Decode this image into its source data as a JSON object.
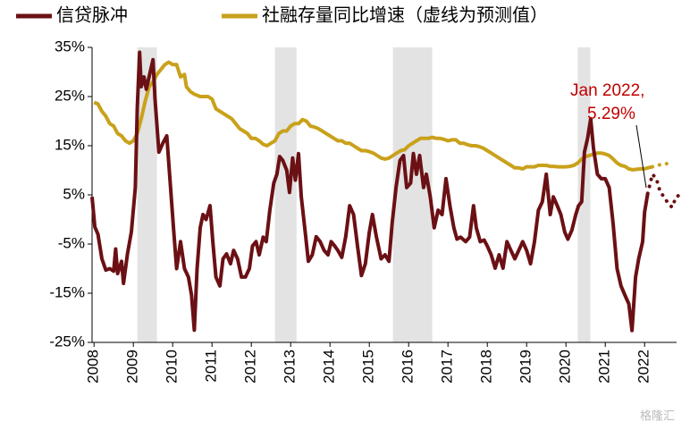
{
  "chart_data": {
    "type": "line",
    "xlim": [
      2007.95,
      2022.95
    ],
    "xticks": [
      2008,
      2009,
      2010,
      2011,
      2012,
      2013,
      2014,
      2015,
      2016,
      2017,
      2018,
      2019,
      2020,
      2021,
      2022
    ],
    "ylim": [
      -25,
      35
    ],
    "yticks": [
      {
        "value": -25,
        "label": "-25%"
      },
      {
        "value": -15,
        "label": "-15%"
      },
      {
        "value": -5,
        "label": "-5%"
      },
      {
        "value": 5,
        "label": "5%"
      },
      {
        "value": 15,
        "label": "15%"
      },
      {
        "value": 25,
        "label": "25%"
      },
      {
        "value": 35,
        "label": "35%"
      }
    ],
    "shaded_periods": [
      [
        2009.1,
        2009.6
      ],
      [
        2012.6,
        2013.15
      ],
      [
        2015.6,
        2016.6
      ],
      [
        2020.3,
        2020.62
      ]
    ],
    "annotation": [
      "Jan 2022,",
      "5.29%"
    ],
    "watermark": "格隆汇",
    "series": [
      {
        "name": "信贷脉冲",
        "color": "#6b1014",
        "dashed_from": 2022.08,
        "x": [
          2007.95,
          2008.02,
          2008.1,
          2008.2,
          2008.3,
          2008.4,
          2008.5,
          2008.55,
          2008.6,
          2008.7,
          2008.75,
          2008.85,
          2008.95,
          2009.05,
          2009.1,
          2009.16,
          2009.2,
          2009.27,
          2009.33,
          2009.4,
          2009.5,
          2009.55,
          2009.65,
          2009.75,
          2009.85,
          2009.93,
          2010.02,
          2010.1,
          2010.2,
          2010.3,
          2010.4,
          2010.48,
          2010.55,
          2010.62,
          2010.7,
          2010.77,
          2010.85,
          2010.95,
          2011.02,
          2011.1,
          2011.2,
          2011.28,
          2011.37,
          2011.47,
          2011.55,
          2011.65,
          2011.75,
          2011.85,
          2011.95,
          2012.03,
          2012.12,
          2012.2,
          2012.3,
          2012.38,
          2012.47,
          2012.57,
          2012.65,
          2012.72,
          2012.8,
          2012.9,
          2012.97,
          2013.05,
          2013.12,
          2013.2,
          2013.27,
          2013.37,
          2013.45,
          2013.55,
          2013.65,
          2013.75,
          2013.85,
          2013.95,
          2014.03,
          2014.12,
          2014.2,
          2014.3,
          2014.4,
          2014.5,
          2014.6,
          2014.7,
          2014.8,
          2014.9,
          2015.0,
          2015.08,
          2015.18,
          2015.3,
          2015.4,
          2015.5,
          2015.58,
          2015.68,
          2015.78,
          2015.87,
          2015.95,
          2016.05,
          2016.12,
          2016.2,
          2016.28,
          2016.38,
          2016.45,
          2016.55,
          2016.65,
          2016.75,
          2016.85,
          2016.95,
          2017.05,
          2017.15,
          2017.23,
          2017.32,
          2017.45,
          2017.55,
          2017.65,
          2017.72,
          2017.82,
          2017.92,
          2018.0,
          2018.1,
          2018.2,
          2018.3,
          2018.4,
          2018.5,
          2018.6,
          2018.7,
          2018.8,
          2018.9,
          2019.0,
          2019.1,
          2019.2,
          2019.3,
          2019.4,
          2019.5,
          2019.6,
          2019.68,
          2019.78,
          2019.87,
          2019.97,
          2020.05,
          2020.15,
          2020.25,
          2020.32,
          2020.4,
          2020.47,
          2020.55,
          2020.63,
          2020.7,
          2020.8,
          2020.9,
          2021.0,
          2021.1,
          2021.2,
          2021.3,
          2021.4,
          2021.5,
          2021.6,
          2021.68,
          2021.77,
          2021.85,
          2021.95,
          2022.0,
          2022.08,
          2022.2,
          2022.3,
          2022.4,
          2022.5,
          2022.6,
          2022.7,
          2022.8,
          2022.9
        ],
        "values": [
          4.6,
          -1.5,
          -3,
          -8,
          -10.3,
          -10,
          -10.5,
          -6,
          -11,
          -8.5,
          -13,
          -7,
          -2.5,
          6.5,
          22.8,
          34,
          27,
          29,
          26.5,
          29,
          32.5,
          24.6,
          13.7,
          15.5,
          17,
          8.3,
          -1.7,
          -10,
          -4.5,
          -10,
          -11.7,
          -15.4,
          -22.5,
          -10,
          -1.7,
          1,
          0,
          2.8,
          -4.5,
          -11.7,
          -13.5,
          -8,
          -7,
          -9,
          -6.3,
          -8,
          -11.7,
          -11.7,
          -10,
          -5.4,
          -4.5,
          -7.2,
          -3.6,
          -4.5,
          1.9,
          7.4,
          9.2,
          12.8,
          12,
          10,
          5.5,
          12.5,
          8,
          13.4,
          4.6,
          -2.6,
          -8.5,
          -7.2,
          -3.5,
          -4.5,
          -6.3,
          -7.2,
          -4.5,
          -5.4,
          -6.3,
          -7.7,
          -3.5,
          2.8,
          1,
          -5.4,
          -11.4,
          -9,
          -2.6,
          1,
          -3.5,
          -8,
          -7.2,
          -8.5,
          -0.9,
          6.5,
          12,
          13,
          6.5,
          7.4,
          13.4,
          9.2,
          13,
          6.5,
          9.2,
          4.6,
          -1.7,
          1.9,
          1,
          8.3,
          2.8,
          -1.7,
          -4,
          -3.6,
          -4.5,
          -3.6,
          2.8,
          -1.7,
          -4.5,
          -4.2,
          -5.4,
          -7.2,
          -9.9,
          -7.2,
          -9.9,
          -4.5,
          -6.3,
          -8,
          -6.3,
          -4.5,
          -6.3,
          -9,
          -4.5,
          1.9,
          3.6,
          9.2,
          1,
          4.6,
          2.8,
          1,
          -2.6,
          -4,
          -2.2,
          1,
          2.8,
          3.6,
          13.7,
          16.5,
          20.5,
          14.5,
          9.2,
          8.3,
          8.3,
          6.5,
          -0.9,
          -10,
          -13.5,
          -15.4,
          -17.2,
          -22.6,
          -11.7,
          -8,
          -4.5,
          1.5,
          5.29,
          9.2,
          8.3,
          5.5,
          4.6,
          3.2,
          2.5,
          4.6,
          5
        ]
      },
      {
        "name": "社融存量同比增速（虚线为预测值）",
        "color": "#c9a11b",
        "dashed_from": 2022.2,
        "x": [
          2008.0,
          2008.1,
          2008.2,
          2008.3,
          2008.4,
          2008.5,
          2008.6,
          2008.7,
          2008.8,
          2008.9,
          2009.0,
          2009.1,
          2009.2,
          2009.3,
          2009.4,
          2009.5,
          2009.6,
          2009.7,
          2009.8,
          2009.9,
          2010.0,
          2010.1,
          2010.2,
          2010.3,
          2010.35,
          2010.45,
          2010.55,
          2010.7,
          2010.8,
          2010.9,
          2011.0,
          2011.1,
          2011.2,
          2011.3,
          2011.4,
          2011.5,
          2011.6,
          2011.7,
          2011.8,
          2011.9,
          2012.0,
          2012.1,
          2012.2,
          2012.3,
          2012.4,
          2012.5,
          2012.6,
          2012.7,
          2012.8,
          2012.9,
          2013.0,
          2013.1,
          2013.2,
          2013.3,
          2013.4,
          2013.5,
          2013.6,
          2013.7,
          2013.8,
          2013.9,
          2014.0,
          2014.1,
          2014.2,
          2014.3,
          2014.4,
          2014.5,
          2014.6,
          2014.7,
          2014.8,
          2014.9,
          2015.0,
          2015.1,
          2015.2,
          2015.3,
          2015.4,
          2015.5,
          2015.6,
          2015.7,
          2015.8,
          2015.9,
          2016.0,
          2016.1,
          2016.2,
          2016.3,
          2016.4,
          2016.5,
          2016.6,
          2016.7,
          2016.8,
          2016.9,
          2017.0,
          2017.1,
          2017.2,
          2017.3,
          2017.4,
          2017.5,
          2017.6,
          2017.7,
          2017.8,
          2017.9,
          2018.0,
          2018.1,
          2018.2,
          2018.3,
          2018.4,
          2018.5,
          2018.6,
          2018.7,
          2018.8,
          2018.9,
          2019.0,
          2019.1,
          2019.2,
          2019.3,
          2019.4,
          2019.5,
          2019.6,
          2019.7,
          2019.8,
          2019.9,
          2020.0,
          2020.1,
          2020.2,
          2020.3,
          2020.4,
          2020.5,
          2020.6,
          2020.7,
          2020.8,
          2020.9,
          2021.0,
          2021.1,
          2021.2,
          2021.3,
          2021.4,
          2021.5,
          2021.6,
          2021.7,
          2021.8,
          2021.9,
          2022.0,
          2022.08,
          2022.2,
          2022.3,
          2022.45,
          2022.6
        ],
        "values": [
          23.8,
          23.5,
          22,
          21,
          19.5,
          19,
          17.5,
          17,
          16,
          15.5,
          16,
          17.5,
          20.5,
          24,
          27,
          28,
          29.5,
          30.5,
          31.5,
          32,
          31.5,
          31.5,
          29,
          29.5,
          27,
          26,
          25.5,
          25,
          25,
          25,
          24.5,
          22.5,
          22,
          21.5,
          21,
          20.5,
          19.5,
          18.5,
          18,
          17.5,
          16.5,
          16.5,
          16,
          15.3,
          15,
          15.5,
          16,
          17.5,
          18,
          18,
          19,
          19.5,
          19.5,
          20.3,
          20,
          19,
          18.8,
          18.5,
          18,
          17.5,
          17,
          16.5,
          16,
          16,
          15.5,
          15.5,
          15,
          14.5,
          14,
          14,
          13.8,
          13.5,
          13,
          12.5,
          12.3,
          12.5,
          13,
          13.5,
          14,
          14.2,
          15,
          15.5,
          16,
          16.5,
          16.5,
          16.5,
          16.7,
          16.5,
          16.5,
          16.3,
          16,
          16.2,
          16.2,
          15.5,
          15.5,
          15.2,
          15,
          15,
          14.8,
          14.5,
          14,
          13.5,
          13,
          12.5,
          12,
          11.5,
          11,
          10.5,
          10.5,
          10.3,
          10.7,
          10.7,
          10.7,
          11,
          11,
          11,
          10.8,
          10.8,
          10.7,
          10.7,
          10.7,
          10.8,
          11,
          11.5,
          12.3,
          12.8,
          13,
          13.3,
          13.5,
          13.5,
          13.3,
          13,
          12.3,
          11.5,
          11,
          10.8,
          10.3,
          10.1,
          10.2,
          10.3,
          10.3,
          10.5,
          10.7,
          11,
          11.2,
          11.4
        ]
      }
    ]
  }
}
